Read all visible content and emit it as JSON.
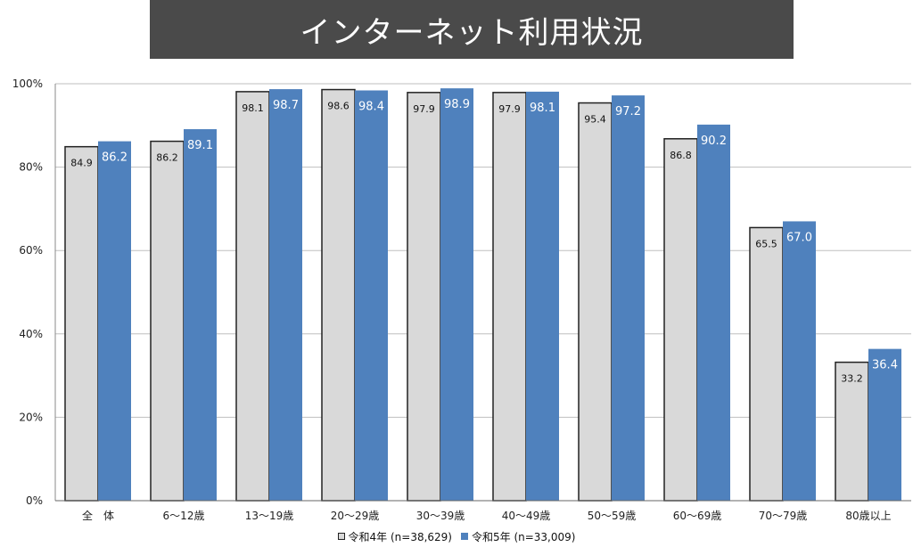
{
  "title": "インターネット利用状況",
  "colors": {
    "banner": "#4a4a4a",
    "series0": "#d9d9d9",
    "series1": "#4f81bd",
    "grid": "#bfbfbf"
  },
  "chart_data": {
    "type": "bar",
    "categories": [
      "全　体",
      "6～12歳",
      "13～19歳",
      "20～29歳",
      "30～39歳",
      "40～49歳",
      "50～59歳",
      "60～69歳",
      "70～79歳",
      "80歳以上"
    ],
    "series": [
      {
        "name": "令和4年 (n=38,629)",
        "values": [
          84.9,
          86.2,
          98.1,
          98.6,
          97.9,
          97.9,
          95.4,
          86.8,
          65.5,
          33.2
        ]
      },
      {
        "name": "令和5年 (n=33,009)",
        "values": [
          86.2,
          89.1,
          98.7,
          98.4,
          98.9,
          98.1,
          97.2,
          90.2,
          67.0,
          36.4
        ]
      }
    ],
    "yticks": [
      "0%",
      "20%",
      "40%",
      "60%",
      "80%",
      "100%"
    ],
    "ylim": [
      0,
      100
    ],
    "grid": true,
    "legend_position": "bottom"
  }
}
